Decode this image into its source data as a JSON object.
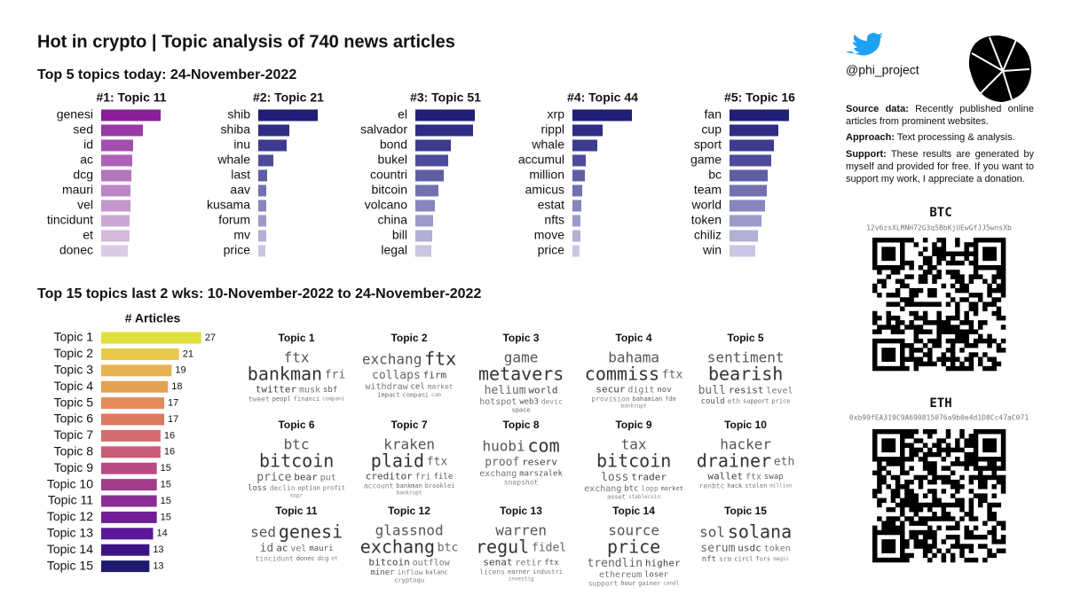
{
  "title": "Hot in crypto | Topic analysis of 740 news articles",
  "subtitle_today": "Top 5 topics today: 24-November-2022",
  "subtitle_period": "Top 15 topics last 2 wks: 10-November-2022 to 24-November-2022",
  "chart_data": [
    {
      "type": "bar",
      "orientation": "horizontal",
      "title": "#1: Topic 11",
      "categories": [
        "genesi",
        "sed",
        "id",
        "ac",
        "dcg",
        "mauri",
        "vel",
        "tincidunt",
        "et",
        "donec"
      ],
      "values": [
        67,
        47,
        36,
        35,
        34,
        33,
        33,
        32,
        32,
        30
      ],
      "xlim": [
        0,
        70
      ],
      "colors": [
        "#8a1f97",
        "#9a3aa6",
        "#a24fae",
        "#ad62b7",
        "#b474bd",
        "#bb86c4",
        "#c497cc",
        "#cba8d3",
        "#d4b9dc",
        "#dccbe4"
      ]
    },
    {
      "type": "bar",
      "orientation": "horizontal",
      "title": "#2: Topic 21",
      "categories": [
        "shib",
        "shiba",
        "inu",
        "whale",
        "last",
        "aav",
        "kusama",
        "forum",
        "mv",
        "price"
      ],
      "values": [
        67,
        35,
        32,
        17,
        10,
        9,
        9,
        9,
        9,
        8
      ],
      "xlim": [
        0,
        70
      ],
      "colors": [
        "#1f1f78",
        "#2e2d85",
        "#3d3b8f",
        "#4e4c99",
        "#5f5ea4",
        "#7371b0",
        "#8785bd",
        "#9c9ac9",
        "#b2b0d6",
        "#c8c6e2"
      ]
    },
    {
      "type": "bar",
      "orientation": "horizontal",
      "title": "#3: Topic 51",
      "categories": [
        "el",
        "salvador",
        "bond",
        "bukel",
        "countri",
        "bitcoin",
        "volcano",
        "china",
        "bill",
        "legal"
      ],
      "values": [
        67,
        65,
        40,
        37,
        32,
        26,
        22,
        20,
        19,
        18
      ],
      "xlim": [
        0,
        70
      ],
      "colors": [
        "#1f1f78",
        "#2e2d85",
        "#3d3b8f",
        "#4e4c99",
        "#5f5ea4",
        "#7371b0",
        "#8785bd",
        "#9c9ac9",
        "#b2b0d6",
        "#c8c6e2"
      ]
    },
    {
      "type": "bar",
      "orientation": "horizontal",
      "title": "#4: Topic 44",
      "categories": [
        "xrp",
        "rippl",
        "whale",
        "accumul",
        "million",
        "amicus",
        "estat",
        "nfts",
        "move",
        "price"
      ],
      "values": [
        67,
        34,
        28,
        15,
        14,
        11,
        10,
        9,
        9,
        8
      ],
      "xlim": [
        0,
        70
      ],
      "colors": [
        "#1f1f78",
        "#2e2d85",
        "#3d3b8f",
        "#4e4c99",
        "#5f5ea4",
        "#7371b0",
        "#8785bd",
        "#9c9ac9",
        "#b2b0d6",
        "#c8c6e2"
      ]
    },
    {
      "type": "bar",
      "orientation": "horizontal",
      "title": "#5: Topic 16",
      "categories": [
        "fan",
        "cup",
        "sport",
        "game",
        "bc",
        "team",
        "world",
        "token",
        "chiliz",
        "win"
      ],
      "values": [
        67,
        55,
        50,
        47,
        43,
        42,
        40,
        36,
        32,
        29
      ],
      "xlim": [
        0,
        70
      ],
      "colors": [
        "#1f1f78",
        "#2e2d85",
        "#3d3b8f",
        "#4e4c99",
        "#5f5ea4",
        "#7371b0",
        "#8785bd",
        "#9c9ac9",
        "#b2b0d6",
        "#c8c6e2"
      ]
    },
    {
      "type": "bar",
      "orientation": "horizontal",
      "title": "# Articles",
      "categories": [
        "Topic 1",
        "Topic 2",
        "Topic 3",
        "Topic 4",
        "Topic 5",
        "Topic 6",
        "Topic 7",
        "Topic 8",
        "Topic 9",
        "Topic 10",
        "Topic 11",
        "Topic 12",
        "Topic 13",
        "Topic 14",
        "Topic 15"
      ],
      "values": [
        27,
        21,
        19,
        18,
        17,
        17,
        16,
        16,
        15,
        15,
        15,
        15,
        14,
        13,
        13
      ],
      "xlim": [
        0,
        28
      ],
      "colors": [
        "#dfe03e",
        "#e6c84a",
        "#e7b24f",
        "#e5a052",
        "#e48c58",
        "#db7b62",
        "#d56c6c",
        "#c95c78",
        "#b84b84",
        "#a23d8c",
        "#8a2e94",
        "#711f98",
        "#5a1899",
        "#3c1488",
        "#1e1a6e"
      ]
    }
  ],
  "wordclouds": [
    {
      "title": "Topic 1",
      "words": [
        "bankman",
        "ftx",
        "fri",
        "twitter",
        "musk",
        "sbf",
        "tweet",
        "peopl",
        "financi",
        "compani"
      ]
    },
    {
      "title": "Topic 2",
      "words": [
        "ftx",
        "exchang",
        "collaps",
        "firm",
        "withdraw",
        "cel",
        "market",
        "impact",
        "compani",
        "com"
      ]
    },
    {
      "title": "Topic 3",
      "words": [
        "metavers",
        "game",
        "helium",
        "world",
        "hotspot",
        "web3",
        "devic",
        "space"
      ]
    },
    {
      "title": "Topic 4",
      "words": [
        "commiss",
        "bahama",
        "ftx",
        "secur",
        "digit",
        "nov",
        "provision",
        "bahamian",
        "fdm",
        "bankrupt"
      ]
    },
    {
      "title": "Topic 5",
      "words": [
        "bearish",
        "sentiment",
        "bull",
        "resist",
        "level",
        "could",
        "eth",
        "support",
        "price"
      ]
    },
    {
      "title": "Topic 6",
      "words": [
        "bitcoin",
        "btc",
        "price",
        "bear",
        "put",
        "loss",
        "declin",
        "option",
        "profit",
        "sopr"
      ]
    },
    {
      "title": "Topic 7",
      "words": [
        "plaid",
        "kraken",
        "ftx",
        "creditor",
        "fri",
        "file",
        "account",
        "bankman",
        "brooklei",
        "bankrupt"
      ]
    },
    {
      "title": "Topic 8",
      "words": [
        "com",
        "huobi",
        "proof",
        "reserv",
        "exchang",
        "marszalek",
        "snapshot"
      ]
    },
    {
      "title": "Topic 9",
      "words": [
        "bitcoin",
        "tax",
        "loss",
        "trader",
        "exchang",
        "btc",
        "lopp",
        "market",
        "asset",
        "stablecoin"
      ]
    },
    {
      "title": "Topic 10",
      "words": [
        "drainer",
        "hacker",
        "eth",
        "wallet",
        "ftx",
        "swap",
        "renbtc",
        "hack",
        "stolen",
        "million"
      ]
    },
    {
      "title": "Topic 11",
      "words": [
        "genesi",
        "sed",
        "id",
        "ac",
        "vel",
        "mauri",
        "tincidunt",
        "donec",
        "dcg",
        "et"
      ]
    },
    {
      "title": "Topic 12",
      "words": [
        "exchang",
        "glassnod",
        "btc",
        "bitcoin",
        "outflow",
        "miner",
        "inflow",
        "balanc",
        "cryptoqu"
      ]
    },
    {
      "title": "Topic 13",
      "words": [
        "regul",
        "warren",
        "fidel",
        "senat",
        "retir",
        "ftx",
        "licens",
        "earner",
        "industri",
        "investig"
      ]
    },
    {
      "title": "Topic 14",
      "words": [
        "price",
        "source",
        "trendlin",
        "higher",
        "ethereum",
        "loser",
        "support",
        "hour",
        "gainer",
        "candl"
      ]
    },
    {
      "title": "Topic 15",
      "words": [
        "solana",
        "sol",
        "serum",
        "usdc",
        "token",
        "nft",
        "srm",
        "circl",
        "fors",
        "magic"
      ]
    }
  ],
  "sidebar": {
    "handle": "@phi_project",
    "source": {
      "label": "Source data:",
      "text": "Recently published online articles from prominent websites."
    },
    "approach": {
      "label": "Approach:",
      "text": "Text processing & analysis."
    },
    "support": {
      "label": "Support:",
      "text": "These results are generated by myself and provided for free. If you want to support my work, I appreciate a donation."
    },
    "btc": {
      "label": "BTC",
      "address": "12v6zsXLMNH72G3q5BbKjUEwGfJJ5wnsXb"
    },
    "eth": {
      "label": "ETH",
      "address": "0xb99fEA319C9A690815076a9b0e4d1D8Cc47aC071"
    }
  }
}
